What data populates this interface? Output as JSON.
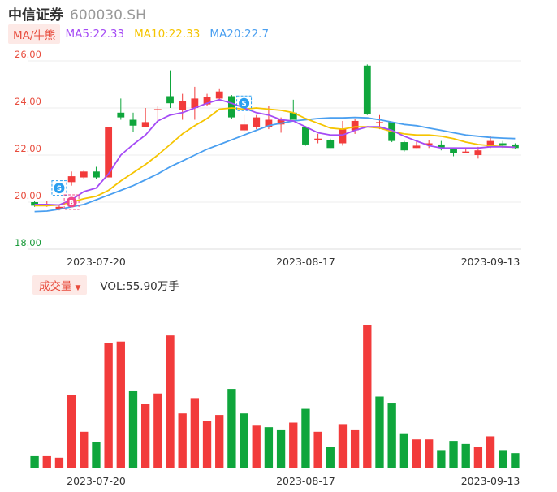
{
  "header": {
    "name": "中信证券",
    "code": "600030.SH"
  },
  "ma_bar": {
    "toggle_label": "MA/牛熊",
    "items": [
      {
        "label": "MA5:22.33",
        "color": "#a54bf5"
      },
      {
        "label": "MA10:22.33",
        "color": "#f5c400"
      },
      {
        "label": "MA20:22.7",
        "color": "#4a9ff0"
      }
    ]
  },
  "volume_bar": {
    "toggle_label": "成交量",
    "vol_label": "VOL:55.90万手"
  },
  "markers": {
    "buy_text": "B",
    "sell_text": "S"
  },
  "colors": {
    "up": "#f23b3b",
    "down": "#0fa63c",
    "grid": "#eeeeee",
    "price_tick_up": "#e84c3d",
    "price_tick_down": "#1a9a3a",
    "date_tick": "#333333"
  },
  "chart_data": {
    "type": "candlestick",
    "price_axis": {
      "min": 18.0,
      "max": 26.0,
      "ticks": [
        "26.00",
        "24.00",
        "22.00",
        "20.00",
        "18.00"
      ]
    },
    "date_ticks": [
      {
        "label": "2023-07-20",
        "index": 5
      },
      {
        "label": "2023-08-17",
        "index": 22
      },
      {
        "label": "2023-09-13",
        "index": 37
      }
    ],
    "candles": [
      {
        "o": 20.0,
        "c": 19.85,
        "h": 20.05,
        "l": 19.8
      },
      {
        "o": 19.85,
        "c": 19.9,
        "h": 20.05,
        "l": 19.8
      },
      {
        "o": 19.7,
        "c": 19.8,
        "h": 19.85,
        "l": 19.65
      },
      {
        "o": 20.85,
        "c": 21.1,
        "h": 21.3,
        "l": 20.7
      },
      {
        "o": 21.05,
        "c": 21.3,
        "h": 21.35,
        "l": 21.0
      },
      {
        "o": 21.3,
        "c": 21.05,
        "h": 21.5,
        "l": 21.0
      },
      {
        "o": 21.05,
        "c": 23.2,
        "h": 23.2,
        "l": 21.05
      },
      {
        "o": 23.8,
        "c": 23.6,
        "h": 24.4,
        "l": 23.5
      },
      {
        "o": 23.5,
        "c": 23.25,
        "h": 23.8,
        "l": 23.0
      },
      {
        "o": 23.2,
        "c": 23.4,
        "h": 24.0,
        "l": 23.2
      },
      {
        "o": 23.95,
        "c": 23.95,
        "h": 24.1,
        "l": 23.4
      },
      {
        "o": 24.5,
        "c": 24.2,
        "h": 25.6,
        "l": 24.0
      },
      {
        "o": 23.9,
        "c": 24.3,
        "h": 24.6,
        "l": 23.5
      },
      {
        "o": 24.0,
        "c": 24.4,
        "h": 24.9,
        "l": 23.5
      },
      {
        "o": 24.15,
        "c": 24.45,
        "h": 24.6,
        "l": 24.1
      },
      {
        "o": 24.4,
        "c": 24.7,
        "h": 24.8,
        "l": 24.3
      },
      {
        "o": 24.5,
        "c": 23.6,
        "h": 24.55,
        "l": 23.55
      },
      {
        "o": 23.05,
        "c": 23.3,
        "h": 23.7,
        "l": 23.0
      },
      {
        "o": 23.2,
        "c": 23.6,
        "h": 23.7,
        "l": 23.1
      },
      {
        "o": 23.2,
        "c": 23.5,
        "h": 24.1,
        "l": 23.1
      },
      {
        "o": 23.3,
        "c": 23.5,
        "h": 23.6,
        "l": 22.95
      },
      {
        "o": 23.8,
        "c": 23.5,
        "h": 24.35,
        "l": 23.5
      },
      {
        "o": 23.2,
        "c": 22.45,
        "h": 23.2,
        "l": 22.4
      },
      {
        "o": 22.7,
        "c": 22.7,
        "h": 22.9,
        "l": 22.5
      },
      {
        "o": 22.65,
        "c": 22.3,
        "h": 22.7,
        "l": 22.3
      },
      {
        "o": 22.5,
        "c": 23.1,
        "h": 23.45,
        "l": 22.4
      },
      {
        "o": 23.05,
        "c": 23.45,
        "h": 23.55,
        "l": 22.9
      },
      {
        "o": 25.8,
        "c": 23.75,
        "h": 25.85,
        "l": 23.7
      },
      {
        "o": 23.4,
        "c": 23.4,
        "h": 23.7,
        "l": 23.1
      },
      {
        "o": 23.4,
        "c": 22.6,
        "h": 23.4,
        "l": 22.55
      },
      {
        "o": 22.55,
        "c": 22.2,
        "h": 22.6,
        "l": 22.15
      },
      {
        "o": 22.3,
        "c": 22.4,
        "h": 22.6,
        "l": 22.3
      },
      {
        "o": 22.5,
        "c": 22.5,
        "h": 22.65,
        "l": 22.3
      },
      {
        "o": 22.45,
        "c": 22.3,
        "h": 22.6,
        "l": 22.2
      },
      {
        "o": 22.25,
        "c": 22.1,
        "h": 22.3,
        "l": 21.95
      },
      {
        "o": 22.15,
        "c": 22.15,
        "h": 22.3,
        "l": 22.1
      },
      {
        "o": 22.0,
        "c": 22.2,
        "h": 22.35,
        "l": 21.85
      },
      {
        "o": 22.35,
        "c": 22.6,
        "h": 22.8,
        "l": 22.3
      },
      {
        "o": 22.5,
        "c": 22.4,
        "h": 22.6,
        "l": 22.3
      },
      {
        "o": 22.45,
        "c": 22.3,
        "h": 22.5,
        "l": 22.25
      }
    ],
    "ma5": [
      19.9,
      19.9,
      19.88,
      20.1,
      20.45,
      20.6,
      21.2,
      22.0,
      22.45,
      22.85,
      23.45,
      23.7,
      23.8,
      24.0,
      24.2,
      24.35,
      24.2,
      24.0,
      23.8,
      23.7,
      23.5,
      23.45,
      23.2,
      22.95,
      22.85,
      22.85,
      23.05,
      23.2,
      23.2,
      23.05,
      22.8,
      22.6,
      22.4,
      22.3,
      22.3,
      22.3,
      22.3,
      22.35,
      22.35,
      22.33
    ],
    "ma10": [
      19.85,
      19.85,
      19.88,
      20.0,
      20.15,
      20.25,
      20.5,
      20.9,
      21.25,
      21.6,
      22.0,
      22.45,
      22.9,
      23.25,
      23.55,
      23.95,
      24.0,
      23.95,
      24.0,
      23.95,
      23.9,
      23.8,
      23.55,
      23.35,
      23.15,
      23.1,
      23.2,
      23.2,
      23.15,
      23.0,
      22.9,
      22.85,
      22.85,
      22.8,
      22.7,
      22.55,
      22.45,
      22.4,
      22.35,
      22.33
    ],
    "ma20": [
      19.6,
      19.62,
      19.7,
      19.8,
      19.9,
      20.1,
      20.3,
      20.5,
      20.7,
      20.95,
      21.2,
      21.5,
      21.75,
      22.0,
      22.25,
      22.45,
      22.65,
      22.85,
      23.05,
      23.25,
      23.35,
      23.45,
      23.5,
      23.55,
      23.58,
      23.58,
      23.6,
      23.58,
      23.5,
      23.4,
      23.3,
      23.25,
      23.15,
      23.05,
      22.95,
      22.85,
      22.8,
      22.75,
      22.72,
      22.7
    ],
    "volume": [
      {
        "v": 8,
        "up": false
      },
      {
        "v": 8,
        "up": true
      },
      {
        "v": 7,
        "up": true
      },
      {
        "v": 48,
        "up": true
      },
      {
        "v": 24,
        "up": true
      },
      {
        "v": 17,
        "up": false
      },
      {
        "v": 82,
        "up": true
      },
      {
        "v": 83,
        "up": true
      },
      {
        "v": 51,
        "up": false
      },
      {
        "v": 42,
        "up": true
      },
      {
        "v": 49,
        "up": true
      },
      {
        "v": 87,
        "up": true
      },
      {
        "v": 36,
        "up": true
      },
      {
        "v": 46,
        "up": true
      },
      {
        "v": 31,
        "up": true
      },
      {
        "v": 35,
        "up": true
      },
      {
        "v": 52,
        "up": false
      },
      {
        "v": 36,
        "up": false
      },
      {
        "v": 28,
        "up": true
      },
      {
        "v": 27,
        "up": false
      },
      {
        "v": 25,
        "up": false
      },
      {
        "v": 30,
        "up": true
      },
      {
        "v": 39,
        "up": false
      },
      {
        "v": 24,
        "up": true
      },
      {
        "v": 14,
        "up": false
      },
      {
        "v": 29,
        "up": true
      },
      {
        "v": 25,
        "up": true
      },
      {
        "v": 94,
        "up": true
      },
      {
        "v": 47,
        "up": false
      },
      {
        "v": 43,
        "up": false
      },
      {
        "v": 23,
        "up": false
      },
      {
        "v": 19,
        "up": true
      },
      {
        "v": 19,
        "up": true
      },
      {
        "v": 12,
        "up": false
      },
      {
        "v": 18,
        "up": false
      },
      {
        "v": 16,
        "up": false
      },
      {
        "v": 14,
        "up": true
      },
      {
        "v": 21,
        "up": true
      },
      {
        "v": 12,
        "up": false
      },
      {
        "v": 10,
        "up": false
      }
    ],
    "volume_max": 94,
    "markers": [
      {
        "type": "sell",
        "index": 2,
        "price": 20.6
      },
      {
        "type": "buy",
        "index": 3,
        "price": 20.0
      },
      {
        "type": "sell",
        "index": 17,
        "price": 24.2
      }
    ]
  }
}
